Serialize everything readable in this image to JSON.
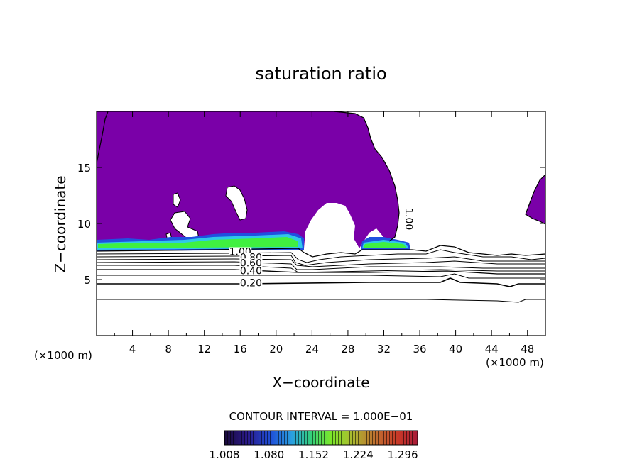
{
  "chart_data": {
    "type": "heatmap",
    "title": "saturation ratio",
    "xlabel": "X−coordinate",
    "ylabel": "Z−coordinate",
    "x_unit_left": "(×1000 m)",
    "x_unit_right": "(×1000 m)",
    "xlim": [
      0,
      50
    ],
    "ylim": [
      0,
      20
    ],
    "x_ticks": [
      "4",
      "8",
      "12",
      "16",
      "20",
      "24",
      "28",
      "32",
      "36",
      "40",
      "44",
      "48"
    ],
    "x_tick_values": [
      4,
      8,
      12,
      16,
      20,
      24,
      28,
      32,
      36,
      40,
      44,
      48
    ],
    "y_ticks": [
      "5",
      "10",
      "15"
    ],
    "y_tick_values": [
      5,
      10,
      15
    ],
    "contour_interval_text": "CONTOUR INTERVAL = 1.000E−01",
    "contour_labels": [
      {
        "text": "1.00",
        "x": 16.0,
        "y": 7.5
      },
      {
        "text": "0.80",
        "x": 17.2,
        "y": 7.0
      },
      {
        "text": "0.60",
        "x": 17.2,
        "y": 6.5
      },
      {
        "text": "0.40",
        "x": 17.2,
        "y": 5.8
      },
      {
        "text": "0.20",
        "x": 17.2,
        "y": 4.7
      },
      {
        "text": "1.00",
        "x": 34.8,
        "y": 10.4,
        "rotated": true
      }
    ],
    "contour_levels": [
      0.2,
      0.3,
      0.4,
      0.5,
      0.6,
      0.7,
      0.8,
      0.9,
      1.0
    ],
    "colorbar": {
      "labels": [
        "1.008",
        "1.080",
        "1.152",
        "1.224",
        "1.296"
      ],
      "min": 1.008,
      "max": 1.32,
      "colors": [
        "#1a0a3a",
        "#2a1a8a",
        "#1f4fd8",
        "#2aa0e0",
        "#35d07a",
        "#7ae82a",
        "#c8e020",
        "#e0a020",
        "#d04a20",
        "#b01a30"
      ]
    },
    "fill_colors": {
      "supersaturated_core": "#7a00a8",
      "boundary_blue": "#2050e0",
      "boundary_cyan": "#30c8e8",
      "boundary_green": "#40f040"
    }
  }
}
